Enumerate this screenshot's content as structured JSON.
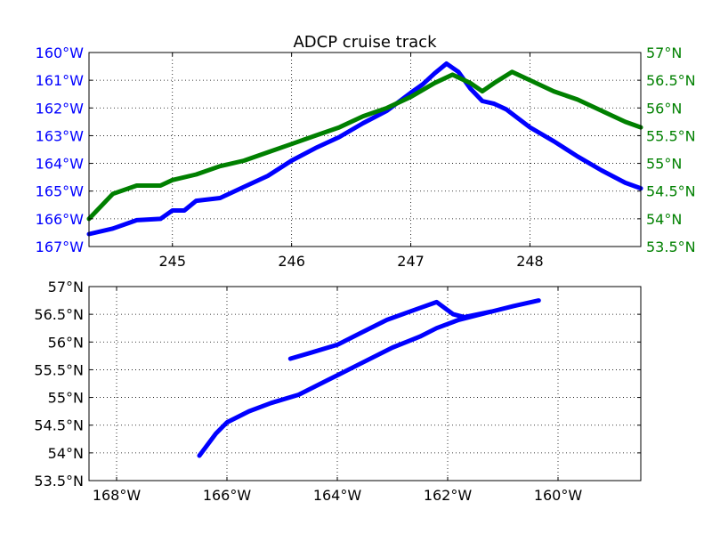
{
  "figure": {
    "background": "#ffffff"
  },
  "chart_data": [
    {
      "type": "line",
      "title": "ADCP cruise track",
      "xlabel": "",
      "xlim": [
        244.3,
        248.93
      ],
      "xticks": [
        245,
        246,
        247,
        248
      ],
      "xtick_labels": [
        "245",
        "246",
        "247",
        "248"
      ],
      "grid": true,
      "left_axis": {
        "ylim": [
          -167,
          -160
        ],
        "ticks": [
          -160,
          -161,
          -162,
          -163,
          -164,
          -165,
          -166,
          -167
        ],
        "tick_labels": [
          "160°W",
          "161°W",
          "162°W",
          "163°W",
          "164°W",
          "165°W",
          "166°W",
          "167°W"
        ],
        "color": "#0000ff"
      },
      "right_axis": {
        "ylim": [
          53.5,
          57
        ],
        "ticks": [
          57,
          56.5,
          56,
          55.5,
          55,
          54.5,
          54,
          53.5
        ],
        "tick_labels": [
          "57°N",
          "56.5°N",
          "56°N",
          "55.5°N",
          "55°N",
          "54.5°N",
          "54°N",
          "53.5°N"
        ],
        "color": "#008000"
      },
      "series": [
        {
          "axis": "left",
          "color": "#0000ff",
          "x": [
            244.3,
            244.5,
            244.7,
            244.9,
            245.0,
            245.1,
            245.2,
            245.4,
            245.6,
            245.8,
            246.0,
            246.2,
            246.4,
            246.6,
            246.8,
            247.0,
            247.1,
            247.2,
            247.3,
            247.4,
            247.5,
            247.6,
            247.7,
            247.8,
            248.0,
            248.2,
            248.4,
            248.6,
            248.8,
            248.93
          ],
          "y": [
            -166.55,
            -166.35,
            -166.05,
            -166.0,
            -165.7,
            -165.7,
            -165.35,
            -165.25,
            -164.85,
            -164.45,
            -163.9,
            -163.45,
            -163.05,
            -162.55,
            -162.1,
            -161.45,
            -161.15,
            -160.75,
            -160.4,
            -160.7,
            -161.3,
            -161.75,
            -161.85,
            -162.05,
            -162.7,
            -163.2,
            -163.75,
            -164.25,
            -164.7,
            -164.9
          ]
        },
        {
          "axis": "right",
          "color": "#008000",
          "x": [
            244.3,
            244.5,
            244.7,
            244.9,
            245.0,
            245.2,
            245.4,
            245.6,
            245.8,
            246.0,
            246.2,
            246.4,
            246.6,
            246.8,
            247.0,
            247.2,
            247.35,
            247.5,
            247.6,
            247.7,
            247.85,
            248.0,
            248.2,
            248.4,
            248.6,
            248.8,
            248.93
          ],
          "y": [
            54.0,
            54.45,
            54.6,
            54.6,
            54.7,
            54.8,
            54.95,
            55.05,
            55.2,
            55.35,
            55.5,
            55.65,
            55.85,
            56.0,
            56.2,
            56.45,
            56.6,
            56.45,
            56.3,
            56.45,
            56.65,
            56.5,
            56.3,
            56.15,
            55.95,
            55.75,
            55.65
          ]
        }
      ]
    },
    {
      "type": "line",
      "title": "",
      "xlabel": "",
      "ylabel": "",
      "xlim": [
        -168.5,
        -158.5
      ],
      "ylim": [
        53.5,
        57
      ],
      "xticks": [
        -168,
        -166,
        -164,
        -162,
        -160
      ],
      "xtick_labels": [
        "168°W",
        "166°W",
        "164°W",
        "162°W",
        "160°W"
      ],
      "yticks": [
        57,
        56.5,
        56,
        55.5,
        55,
        54.5,
        54,
        53.5
      ],
      "ytick_labels": [
        "57°N",
        "56.5°N",
        "56°N",
        "55.5°N",
        "55°N",
        "54.5°N",
        "54°N",
        "53.5°N"
      ],
      "grid": true,
      "series": [
        {
          "color": "#0000ff",
          "x": [
            -166.5,
            -166.2,
            -166.0,
            -165.6,
            -165.2,
            -164.7,
            -164.2,
            -163.6,
            -163.0,
            -162.5,
            -162.2,
            -161.8,
            -161.2,
            -160.8,
            -160.35,
            -160.8,
            -161.2,
            -161.7,
            -161.9,
            -162.2,
            -162.6,
            -163.1,
            -163.6,
            -164.0,
            -164.5,
            -164.85
          ],
          "y": [
            53.95,
            54.35,
            54.55,
            54.75,
            54.9,
            55.05,
            55.3,
            55.6,
            55.9,
            56.1,
            56.25,
            56.4,
            56.55,
            56.65,
            56.75,
            56.65,
            56.55,
            56.45,
            56.5,
            56.72,
            56.58,
            56.4,
            56.15,
            55.95,
            55.8,
            55.7
          ]
        }
      ]
    }
  ]
}
